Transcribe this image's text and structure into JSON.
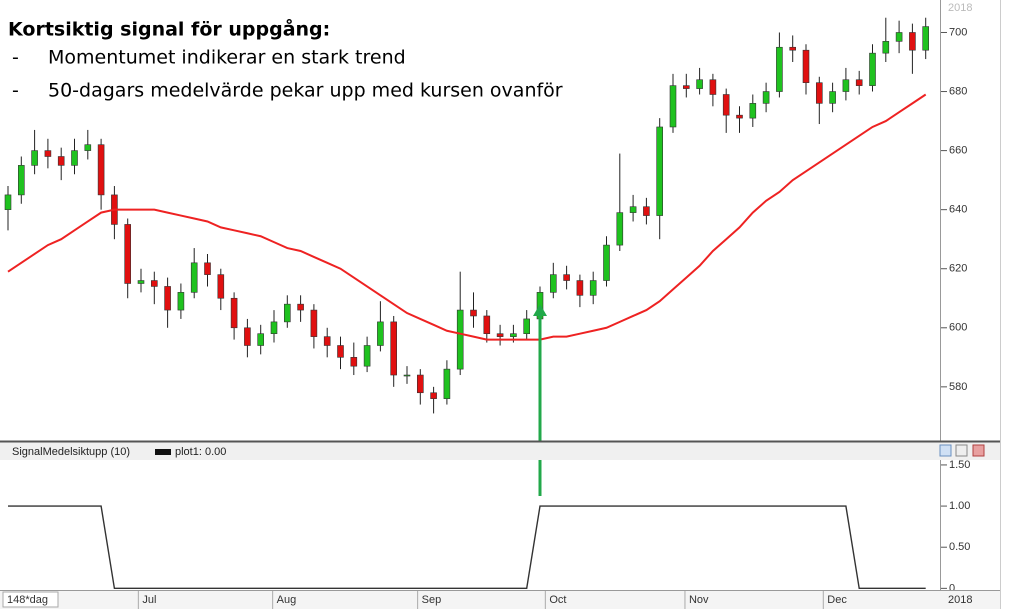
{
  "chart_data": [
    {
      "type": "candlestick",
      "title": "Kortsiktig signal för uppgång:",
      "bullets": [
        "Momentumet indikerar en stark trend",
        "50-dagars medelvärde pekar upp med kursen ovanför"
      ],
      "corner_year": "2018",
      "open": [
        640,
        645,
        655,
        660,
        658,
        655,
        660,
        662,
        645,
        635,
        615,
        616,
        614,
        606,
        612,
        622,
        618,
        610,
        600,
        594,
        598,
        602,
        608,
        606,
        597,
        594,
        590,
        587,
        594,
        602,
        584,
        584,
        578,
        576,
        586,
        606,
        604,
        598,
        597,
        598,
        603,
        612,
        618,
        616,
        611,
        616,
        628,
        639,
        641,
        638,
        668,
        682,
        681,
        684,
        679,
        672,
        671,
        676,
        680,
        695,
        694,
        683,
        676,
        680,
        684,
        682,
        693,
        697,
        700,
        694
      ],
      "high": [
        648,
        658,
        667,
        664,
        661,
        664,
        667,
        664,
        648,
        637,
        620,
        619,
        617,
        615,
        627,
        625,
        620,
        612,
        603,
        601,
        606,
        611,
        611,
        608,
        600,
        597,
        595,
        597,
        609,
        604,
        587,
        586,
        580,
        589,
        619,
        612,
        606,
        601,
        601,
        606,
        614,
        622,
        621,
        618,
        619,
        631,
        659,
        645,
        644,
        671,
        686,
        686,
        688,
        686,
        681,
        675,
        679,
        683,
        700,
        699,
        696,
        685,
        683,
        688,
        687,
        696,
        705,
        704,
        703,
        705
      ],
      "low": [
        633,
        642,
        652,
        654,
        650,
        652,
        657,
        640,
        630,
        610,
        612,
        608,
        600,
        603,
        610,
        614,
        606,
        596,
        590,
        591,
        595,
        600,
        602,
        593,
        590,
        586,
        584,
        585,
        592,
        580,
        581,
        574,
        571,
        574,
        584,
        600,
        595,
        594,
        595,
        596,
        601,
        610,
        613,
        607,
        608,
        614,
        626,
        636,
        635,
        630,
        666,
        678,
        679,
        675,
        666,
        666,
        668,
        673,
        678,
        690,
        679,
        669,
        673,
        677,
        679,
        680,
        690,
        693,
        686,
        691
      ],
      "close": [
        645,
        655,
        660,
        658,
        655,
        660,
        662,
        645,
        635,
        615,
        616,
        614,
        606,
        612,
        622,
        618,
        610,
        600,
        594,
        598,
        602,
        608,
        606,
        597,
        594,
        590,
        587,
        594,
        602,
        584,
        584,
        578,
        576,
        586,
        606,
        604,
        598,
        597,
        598,
        603,
        612,
        618,
        616,
        611,
        616,
        628,
        639,
        641,
        638,
        668,
        682,
        681,
        684,
        679,
        672,
        671,
        676,
        680,
        695,
        694,
        683,
        676,
        680,
        684,
        682,
        693,
        697,
        700,
        694,
        702
      ],
      "up_color": "#1fc21f",
      "down_color": "#e01010",
      "moving_average": {
        "color": "#ee2222",
        "values": [
          619,
          622,
          625,
          628,
          630,
          633,
          636,
          639,
          640,
          640,
          640,
          640,
          639,
          638,
          637,
          636,
          634,
          633,
          632,
          631,
          629,
          627,
          626,
          624,
          622,
          620,
          617,
          614,
          611,
          608,
          605,
          603,
          601,
          599,
          598,
          597,
          596,
          596,
          596,
          596,
          596,
          597,
          597,
          598,
          599,
          600,
          602,
          604,
          606,
          609,
          613,
          617,
          621,
          626,
          630,
          634,
          639,
          643,
          646,
          650,
          653,
          656,
          659,
          662,
          665,
          668,
          670,
          673,
          676,
          679
        ]
      },
      "ylim": [
        562,
        711
      ],
      "yticks": [
        580,
        600,
        620,
        640,
        660,
        680,
        700
      ]
    },
    {
      "type": "line",
      "name": "SignalMedelsiktupp (10)",
      "legend": "plot1: 0.00",
      "color": "#333333",
      "values": [
        1,
        1,
        1,
        1,
        1,
        1,
        1,
        1,
        0,
        0,
        0,
        0,
        0,
        0,
        0,
        0,
        0,
        0,
        0,
        0,
        0,
        0,
        0,
        0,
        0,
        0,
        0,
        0,
        0,
        0,
        0,
        0,
        0,
        0,
        0,
        0,
        0,
        0,
        0,
        0,
        1,
        1,
        1,
        1,
        1,
        1,
        1,
        1,
        1,
        1,
        1,
        1,
        1,
        1,
        1,
        1,
        1,
        1,
        1,
        1,
        1,
        1,
        1,
        1,
        0,
        0,
        0,
        0,
        0,
        0
      ],
      "ylim": [
        -0.02,
        1.56
      ],
      "yticks": [
        0,
        {
          "value": 0.5,
          "label": "0.50"
        },
        {
          "value": 1,
          "label": "1.00"
        },
        {
          "value": 1.5,
          "label": "1.50"
        }
      ],
      "interval_label": "148*dag",
      "xticks": [
        {
          "value": 9.8,
          "label": "Jul"
        },
        {
          "value": 19.9,
          "label": "Aug"
        },
        {
          "value": 30.8,
          "label": "Sep"
        },
        {
          "value": 40.4,
          "label": "Oct"
        },
        {
          "value": 50.9,
          "label": "Nov"
        },
        {
          "value": 61.3,
          "label": "Dec"
        }
      ],
      "year_label": "2018"
    }
  ]
}
